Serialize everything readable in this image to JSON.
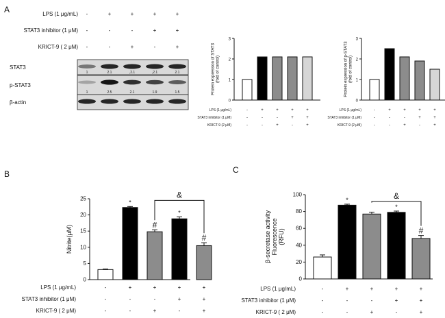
{
  "panels": {
    "a": "A",
    "b": "B",
    "c": "C"
  },
  "blot": {
    "conditions": [
      {
        "label": "LPS (1 μg/mL)",
        "signs": [
          "-",
          "+",
          "+",
          "+",
          "+"
        ]
      },
      {
        "label": "STAT3 inhibitor (1 μM)",
        "signs": [
          "-",
          "-",
          "-",
          "+",
          "+"
        ]
      },
      {
        "label": "KRICT-9  ( 2 μM)",
        "signs": [
          "-",
          "-",
          "+",
          "-",
          "+"
        ]
      }
    ],
    "bands": [
      {
        "label": "STAT3",
        "values": [
          "1",
          "2.1",
          ",2.1",
          ",2.1",
          "2.1"
        ],
        "intensity": [
          0.45,
          0.9,
          0.9,
          0.9,
          0.9
        ]
      },
      {
        "label": "p-STAT3",
        "values": [
          "1",
          "2.5",
          "2.1",
          "1.9",
          "1.5"
        ],
        "intensity": [
          0.2,
          1.0,
          0.85,
          0.75,
          0.6
        ]
      },
      {
        "label": "β-actin",
        "values": [],
        "intensity": [
          0.9,
          0.9,
          0.9,
          0.9,
          0.9
        ]
      }
    ]
  },
  "chart_data": [
    {
      "id": "stat3-bar",
      "type": "bar",
      "title": "",
      "ylabel": "Protein expression of STAT3\n(fold of control)",
      "ylim": [
        0,
        3
      ],
      "yticks": [
        "0",
        "1",
        "2",
        "3"
      ],
      "values": [
        1,
        2.1,
        2.1,
        2.1,
        2.1
      ],
      "fills": [
        "#ffffff",
        "#000000",
        "#8c8c8c",
        "#8c8c8c",
        "#d6d6d6"
      ],
      "conditions": [
        {
          "label": "LPS (1 μg/mL)",
          "signs": [
            "-",
            "+",
            "+",
            "+",
            "+"
          ]
        },
        {
          "label": "STAT3 inhibitor (1 μM)",
          "signs": [
            "-",
            "-",
            "-",
            "+",
            "+"
          ]
        },
        {
          "label": "KRICT-9 (2 μM)",
          "signs": [
            "-",
            "-",
            "+",
            "-",
            "+"
          ]
        }
      ]
    },
    {
      "id": "pstat3-bar",
      "type": "bar",
      "title": "",
      "ylabel": "Protein expression of p-STAT3\n(fold of control)",
      "ylim": [
        0,
        3
      ],
      "yticks": [
        "0",
        "1",
        "2",
        "3"
      ],
      "values": [
        1,
        2.5,
        2.1,
        1.9,
        1.5
      ],
      "fills": [
        "#ffffff",
        "#000000",
        "#8c8c8c",
        "#8c8c8c",
        "#d6d6d6"
      ],
      "conditions": [
        {
          "label": "LPS (1 μg/mL)",
          "signs": [
            "-",
            "+",
            "+",
            "+",
            "+"
          ]
        },
        {
          "label": "STAT3 inhibitor (1 μM)",
          "signs": [
            "-",
            "-",
            "-",
            "+",
            "+"
          ]
        },
        {
          "label": "KRICT-9 (2 μM)",
          "signs": [
            "-",
            "-",
            "+",
            "-",
            "+"
          ]
        }
      ]
    },
    {
      "id": "nitrite-bar",
      "type": "bar",
      "title": "",
      "ylabel": "Nitrite(μM)",
      "ylim": [
        0,
        25
      ],
      "yticks": [
        "0",
        "5",
        "10",
        "15",
        "20",
        "25"
      ],
      "values": [
        3.1,
        22.3,
        14.8,
        18.8,
        10.5
      ],
      "errors": [
        0.2,
        0.3,
        0.6,
        0.6,
        0.9
      ],
      "fills": [
        "#ffffff",
        "#000000",
        "#8c8c8c",
        "#000000",
        "#8c8c8c"
      ],
      "annotations": [
        "",
        "*",
        "#",
        "*",
        "#"
      ],
      "bracket": {
        "from": 2,
        "to": 4,
        "y": 24.5,
        "label": "&"
      },
      "conditions": [
        {
          "label": "LPS (1 μg/mL)",
          "signs": [
            "-",
            "+",
            "+",
            "+",
            "+"
          ]
        },
        {
          "label": "STAT3 inhibitor (1 μM)",
          "signs": [
            "-",
            "-",
            "-",
            "+",
            "+"
          ]
        },
        {
          "label": "KRICT-9 ( 2 μM)",
          "signs": [
            "-",
            "-",
            "+",
            "-",
            "+"
          ]
        }
      ]
    },
    {
      "id": "bsecretase-bar",
      "type": "bar",
      "title": "",
      "ylabel": "β-secretase activity\nFluorescence\n(RFU)",
      "ylim": [
        0,
        100
      ],
      "yticks": [
        "0",
        "20",
        "40",
        "60",
        "80",
        "100"
      ],
      "values": [
        26,
        87.5,
        77,
        79,
        48
      ],
      "errors": [
        2.5,
        1.2,
        2.2,
        1.5,
        3.5
      ],
      "fills": [
        "#ffffff",
        "#000000",
        "#8c8c8c",
        "#000000",
        "#8c8c8c"
      ],
      "annotations": [
        "",
        "*",
        "",
        "*",
        "#"
      ],
      "bracket": {
        "from": 2,
        "to": 4,
        "y": 92,
        "label": "&"
      },
      "conditions": [
        {
          "label": "LPS (1 μg/mL)",
          "signs": [
            "-",
            "+",
            "+",
            "+",
            "+"
          ]
        },
        {
          "label": "STAT3 inhibitor (1 μM)",
          "signs": [
            "-",
            "-",
            "-",
            "+",
            "+"
          ]
        },
        {
          "label": "KRICT-9 ( 2 μM)",
          "signs": [
            "-",
            "-",
            "+",
            "-",
            "+"
          ]
        }
      ]
    }
  ]
}
